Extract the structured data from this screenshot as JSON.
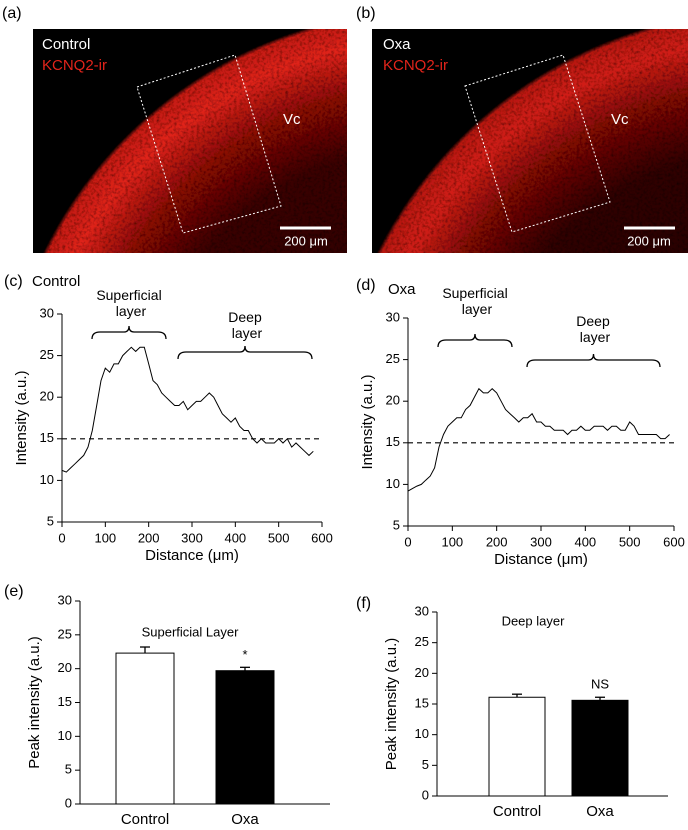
{
  "images": [
    {
      "panel_label": "(a)",
      "condition": "Control",
      "stain": "KCNQ2-ir",
      "region": "Vc",
      "scale_bar": "200 μm"
    },
    {
      "panel_label": "(b)",
      "condition": "Oxa",
      "stain": "KCNQ2-ir",
      "region": "Vc",
      "scale_bar": "200 μm"
    }
  ],
  "chart_data": [
    {
      "type": "line",
      "panel_label": "(c)",
      "title": "Control",
      "x_label": "Distance (μm)",
      "y_label": "Intensity (a.u.)",
      "xlim": [
        0,
        600
      ],
      "ylim": [
        5,
        30
      ],
      "xticks": [
        0,
        100,
        200,
        300,
        400,
        500,
        600
      ],
      "yticks": [
        5,
        10,
        15,
        20,
        25,
        30
      ],
      "reference_line": 15,
      "annotations": [
        "Superficial layer",
        "Deep layer"
      ],
      "x": [
        0,
        10,
        20,
        30,
        40,
        50,
        60,
        70,
        80,
        90,
        100,
        110,
        120,
        130,
        140,
        150,
        160,
        170,
        180,
        190,
        200,
        210,
        220,
        230,
        240,
        250,
        260,
        270,
        280,
        290,
        300,
        310,
        320,
        330,
        340,
        350,
        360,
        370,
        380,
        390,
        400,
        410,
        420,
        430,
        440,
        450,
        460,
        470,
        480,
        490,
        500,
        510,
        520,
        530,
        540,
        550,
        560,
        570,
        580
      ],
      "series": [
        {
          "color": "#000000",
          "values": [
            11.2,
            11,
            11.5,
            12,
            12.5,
            13,
            14,
            16,
            19,
            22,
            23.5,
            23,
            24,
            24,
            25,
            25.5,
            26,
            25.5,
            26,
            26,
            24,
            22,
            21.5,
            20.5,
            20,
            19.5,
            19,
            19,
            19.5,
            18.5,
            19,
            19.5,
            19.5,
            20,
            20.5,
            20,
            19,
            18,
            17.5,
            17,
            17.5,
            16.5,
            16,
            16,
            15,
            14.5,
            15,
            14.5,
            14.5,
            14.5,
            15,
            14.5,
            15,
            14,
            14.5,
            14,
            13.5,
            13,
            13.5
          ]
        }
      ]
    },
    {
      "type": "line",
      "panel_label": "(d)",
      "title": "Oxa",
      "x_label": "Distance (μm)",
      "y_label": "Intensity (a.u.)",
      "xlim": [
        0,
        600
      ],
      "ylim": [
        5,
        30
      ],
      "xticks": [
        0,
        100,
        200,
        300,
        400,
        500,
        600
      ],
      "yticks": [
        5,
        10,
        15,
        20,
        25,
        30
      ],
      "reference_line": 15,
      "annotations": [
        "Superficial layer",
        "Deep layer"
      ],
      "x": [
        0,
        10,
        20,
        30,
        40,
        50,
        60,
        70,
        80,
        90,
        100,
        110,
        120,
        130,
        140,
        150,
        160,
        170,
        180,
        190,
        200,
        210,
        220,
        230,
        240,
        250,
        260,
        270,
        280,
        290,
        300,
        310,
        320,
        330,
        340,
        350,
        360,
        370,
        380,
        390,
        400,
        410,
        420,
        430,
        440,
        450,
        460,
        470,
        480,
        490,
        500,
        510,
        520,
        530,
        540,
        550,
        560,
        570,
        580,
        590
      ],
      "series": [
        {
          "color": "#000000",
          "values": [
            9.2,
            9.5,
            9.8,
            10,
            10.5,
            11,
            12,
            14.5,
            16,
            17,
            17.5,
            18,
            18,
            19,
            19.5,
            20.5,
            21.5,
            21,
            21,
            21.5,
            21,
            20,
            19,
            18.5,
            18,
            17.5,
            18,
            18,
            18.5,
            17.5,
            17.5,
            17,
            17,
            16.5,
            16.5,
            16.5,
            16,
            16.5,
            16.5,
            17,
            16.5,
            16.5,
            17,
            17,
            17,
            16.5,
            17,
            17,
            16.5,
            16.5,
            17.5,
            17,
            16,
            16,
            16,
            16,
            16,
            15.5,
            15.5,
            16
          ]
        }
      ]
    },
    {
      "type": "bar",
      "panel_label": "(e)",
      "title": "Superficial Layer",
      "y_label": "Peak intensity (a.u.)",
      "categories": [
        "Control",
        "Oxa"
      ],
      "values": [
        22.3,
        19.7
      ],
      "errors": [
        0.9,
        0.5
      ],
      "colors": [
        "#ffffff",
        "#000000"
      ],
      "significance": [
        null,
        "*"
      ],
      "ylim": [
        0,
        30
      ],
      "yticks": [
        0,
        5,
        10,
        15,
        20,
        25,
        30
      ]
    },
    {
      "type": "bar",
      "panel_label": "(f)",
      "title": "Deep layer",
      "y_label": "Peak intensity (a.u.)",
      "categories": [
        "Control",
        "Oxa"
      ],
      "values": [
        16.1,
        15.6
      ],
      "errors": [
        0.5,
        0.5
      ],
      "colors": [
        "#ffffff",
        "#000000"
      ],
      "significance": [
        null,
        "NS"
      ],
      "ylim": [
        0,
        30
      ],
      "yticks": [
        0,
        5,
        10,
        15,
        20,
        25,
        30
      ]
    }
  ]
}
